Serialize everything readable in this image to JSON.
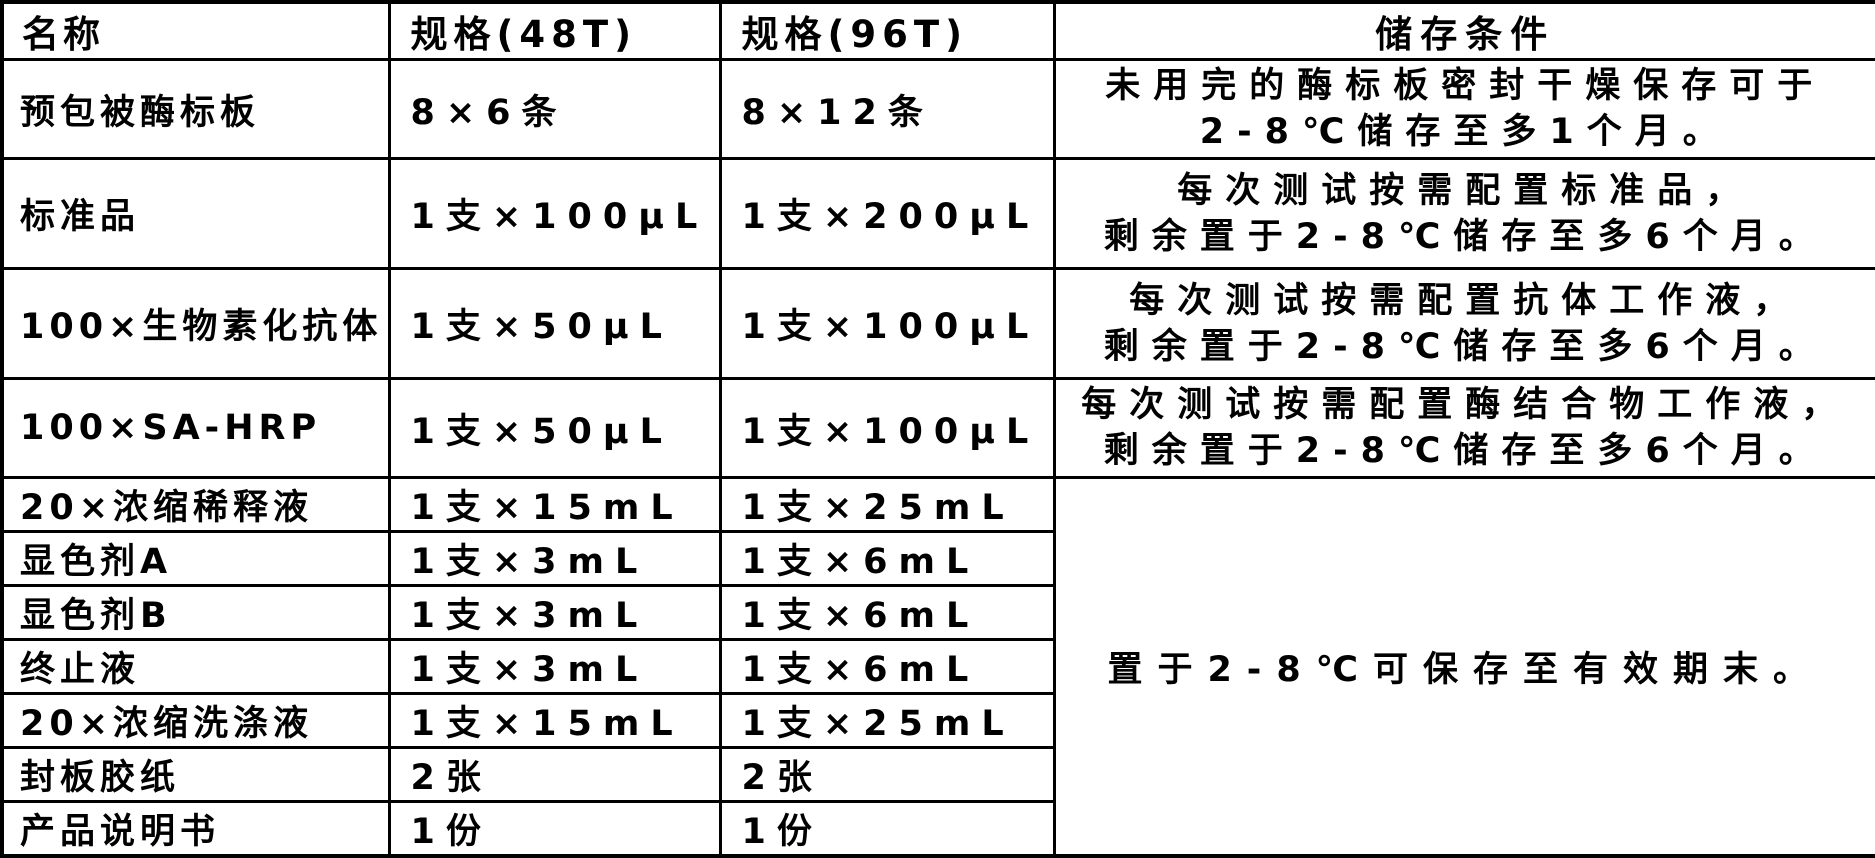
{
  "table": {
    "headers": {
      "name": "名称",
      "spec48": "规格(48T)",
      "spec96": "规格(96T)",
      "storage": "储存条件"
    },
    "rows": [
      {
        "name": "预包被酶标板",
        "spec48": "8×6条",
        "spec96": "8×12条",
        "storage_lines": [
          "未用完的酶标板密封干燥保存可于",
          "2-8℃储存至多1个月。"
        ]
      },
      {
        "name": "标准品",
        "spec48": "1支×100μL",
        "spec96": "1支×200μL",
        "storage_lines": [
          "每次测试按需配置标准品，",
          "剩余置于2-8℃储存至多6个月。"
        ]
      },
      {
        "name": "100×生物素化抗体",
        "spec48": "1支×50μL",
        "spec96": "1支×100μL",
        "storage_lines": [
          "每次测试按需配置抗体工作液，",
          "剩余置于2-8℃储存至多6个月。"
        ]
      },
      {
        "name": "100×SA-HRP",
        "spec48": "1支×50μL",
        "spec96": "1支×100μL",
        "storage_lines": [
          "每次测试按需配置酶结合物工作液，",
          "剩余置于2-8℃储存至多6个月。"
        ]
      },
      {
        "name": "20×浓缩稀释液",
        "spec48": "1支×15mL",
        "spec96": "1支×25mL"
      },
      {
        "name": "显色剂A",
        "spec48": "1支×3mL",
        "spec96": "1支×6mL"
      },
      {
        "name": "显色剂B",
        "spec48": "1支×3mL",
        "spec96": "1支×6mL"
      },
      {
        "name": "终止液",
        "spec48": "1支×3mL",
        "spec96": "1支×6mL"
      },
      {
        "name": "20×浓缩洗涤液",
        "spec48": "1支×15mL",
        "spec96": "1支×25mL"
      },
      {
        "name": "封板胶纸",
        "spec48": "2张",
        "spec96": "2张"
      },
      {
        "name": "产品说明书",
        "spec48": "1份",
        "spec96": "1份"
      }
    ],
    "merged_storage": "置于2-8℃可保存至有效期末。",
    "colors": {
      "border": "#000000",
      "text": "#000000",
      "background": "#ffffff"
    }
  }
}
